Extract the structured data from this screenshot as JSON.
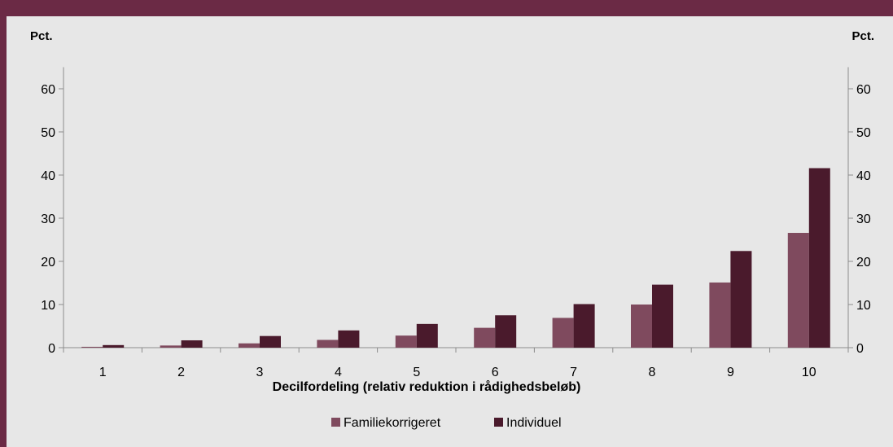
{
  "header": {
    "title_fragment": ""
  },
  "chart_data": {
    "type": "bar",
    "categories": [
      "1",
      "2",
      "3",
      "4",
      "5",
      "6",
      "7",
      "8",
      "9",
      "10"
    ],
    "series": [
      {
        "name": "Familiekorrigeret",
        "color": "#7f4a5e",
        "values": [
          0.2,
          0.5,
          1.0,
          1.8,
          2.8,
          4.6,
          6.9,
          10.0,
          15.1,
          26.6
        ]
      },
      {
        "name": "Individuel",
        "color": "#4a1a2c",
        "values": [
          0.6,
          1.7,
          2.7,
          4.0,
          5.5,
          7.5,
          10.1,
          14.6,
          22.4,
          41.6
        ]
      }
    ],
    "xlabel": "Decilfordeling (relativ reduktion i rådighedsbeløb)",
    "ylabel_left": "Pct.",
    "ylabel_right": "Pct.",
    "ylim": [
      0,
      65
    ],
    "yticks": [
      0,
      10,
      20,
      30,
      40,
      50,
      60
    ],
    "grid": false,
    "legend_position": "bottom"
  }
}
